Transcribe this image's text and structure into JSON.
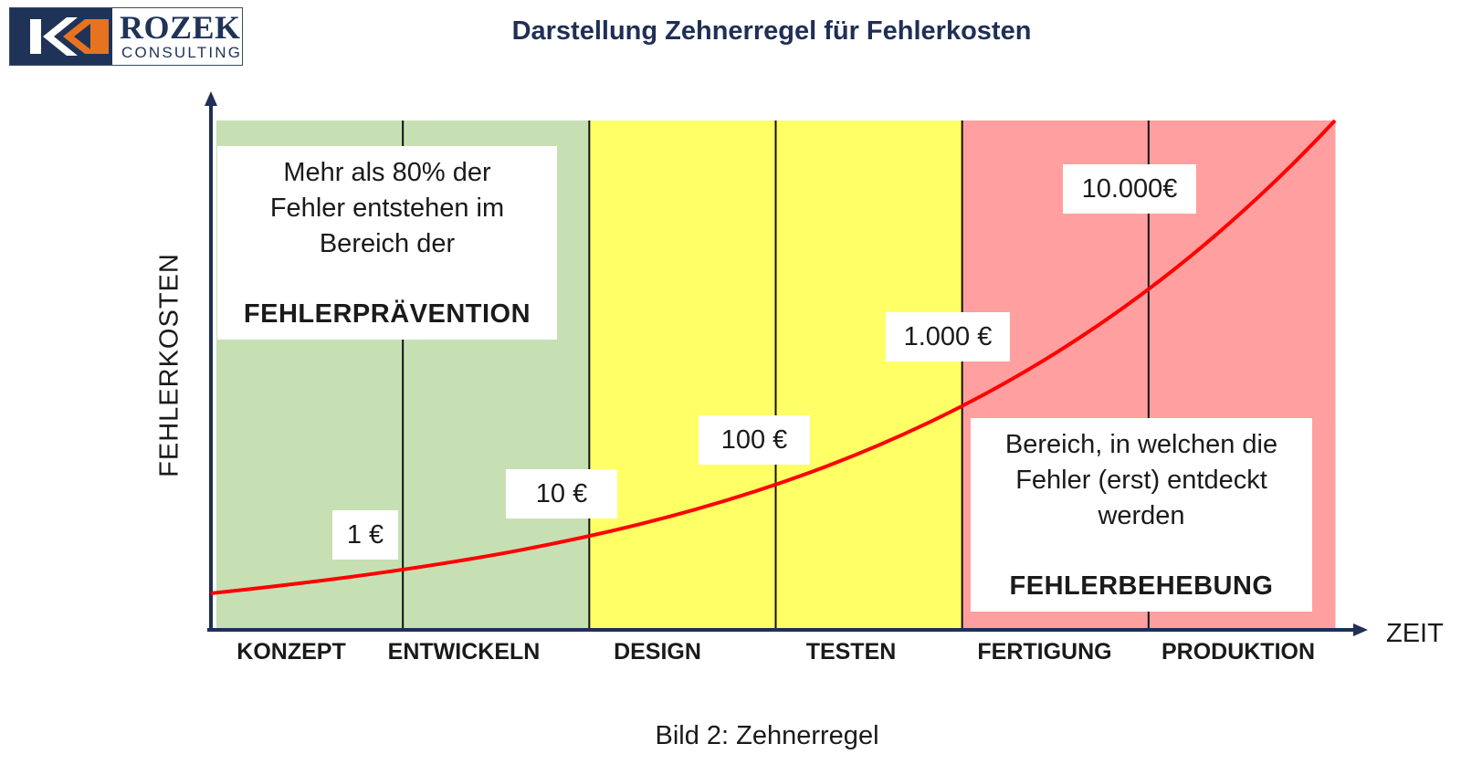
{
  "logo": {
    "name": "ROZEK",
    "subtitle": "CONSULTING",
    "colors": {
      "navy": "#1f3358",
      "orange": "#e8731f"
    }
  },
  "title": "Darstellung Zehnerregel für Fehlerkosten",
  "axes": {
    "y_label": "FEHLERKOSTEN",
    "x_label": "ZEIT"
  },
  "phases": [
    {
      "label": "KONZEPT",
      "color": "#c6e0b4"
    },
    {
      "label": "ENTWICKELN",
      "color": "#c6e0b4"
    },
    {
      "label": "DESIGN",
      "color": "#ffff66"
    },
    {
      "label": "TESTEN",
      "color": "#ffff66"
    },
    {
      "label": "FERTIGUNG",
      "color": "#ff9f9f"
    },
    {
      "label": "PRODUKTION",
      "color": "#ff9f9f"
    }
  ],
  "costs": [
    {
      "label": "1 €"
    },
    {
      "label": "10 €"
    },
    {
      "label": "100 €"
    },
    {
      "label": "1.000 €"
    },
    {
      "label": "10.000€"
    }
  ],
  "prevention_box": {
    "text_lines": [
      "Mehr als 80% der",
      "Fehler entstehen im",
      "Bereich der"
    ],
    "emphasis": "FEHLERPRÄVENTION"
  },
  "correction_box": {
    "text_lines": [
      "Bereich, in welchen die",
      "Fehler (erst) entdeckt",
      "werden"
    ],
    "emphasis": "FEHLERBEHEBUNG"
  },
  "curve": {
    "color": "#ff0000"
  },
  "caption": "Bild 2: Zehnerregel"
}
